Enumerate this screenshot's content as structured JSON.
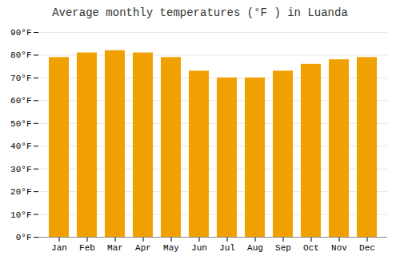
{
  "chart_data": {
    "type": "bar",
    "title": "Average monthly temperatures (°F ) in Luanda",
    "categories": [
      "Jan",
      "Feb",
      "Mar",
      "Apr",
      "May",
      "Jun",
      "Jul",
      "Aug",
      "Sep",
      "Oct",
      "Nov",
      "Dec"
    ],
    "values": [
      79,
      81,
      82,
      81,
      79,
      73,
      70,
      70,
      73,
      76,
      78,
      79
    ],
    "color": "#F0A000",
    "ylim": [
      0,
      90
    ],
    "yticks": [
      {
        "value": 0,
        "label": "0°F"
      },
      {
        "value": 10,
        "label": "10°F"
      },
      {
        "value": 20,
        "label": "20°F"
      },
      {
        "value": 30,
        "label": "30°F"
      },
      {
        "value": 40,
        "label": "40°F"
      },
      {
        "value": 50,
        "label": "50°F"
      },
      {
        "value": 60,
        "label": "60°F"
      },
      {
        "value": 70,
        "label": "70°F"
      },
      {
        "value": 80,
        "label": "80°F"
      },
      {
        "value": 90,
        "label": "90°F"
      }
    ],
    "grid": true
  }
}
